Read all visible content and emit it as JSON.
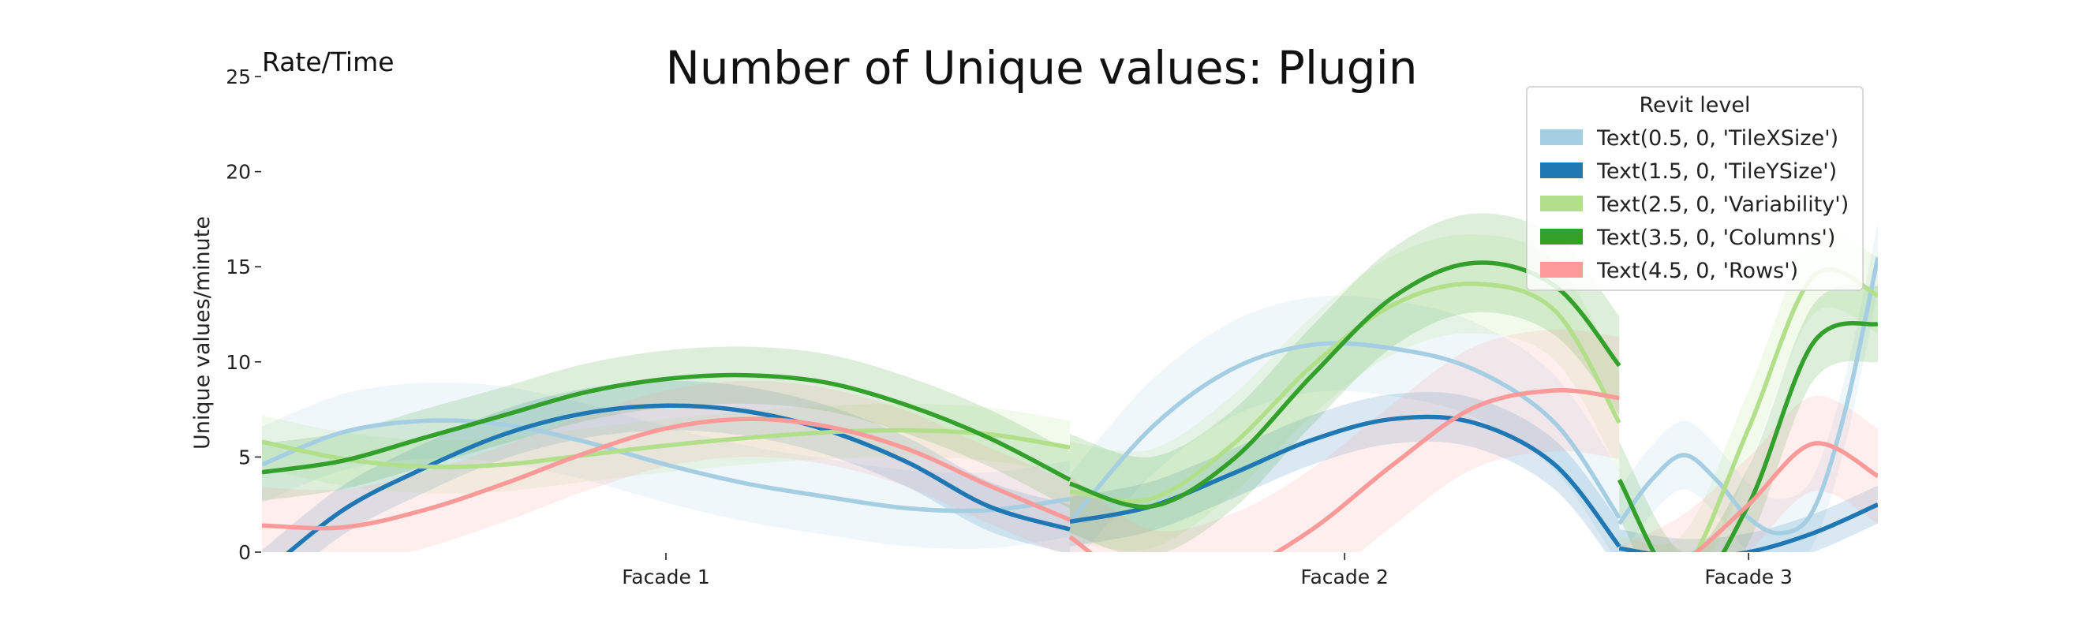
{
  "chart_data": {
    "type": "line",
    "title": "Number of Unique values: Plugin",
    "corner_label": "Rate/Time",
    "ylabel": "Unique values/minute",
    "xlabel": "",
    "ylim": [
      0,
      25
    ],
    "yticks": [
      0,
      5,
      10,
      15,
      20,
      25
    ],
    "categories": [
      "Facade 1",
      "Facade 2",
      "Facade 3"
    ],
    "category_ranges": [
      [
        0,
        1
      ],
      [
        1,
        1.68
      ],
      [
        1.68,
        2
      ]
    ],
    "legend": {
      "title": "Revit level",
      "position": "top-right"
    },
    "series": [
      {
        "name": "Text(0.5, 0, 'TileXSize')",
        "color": "#a6cee3",
        "segments": [
          {
            "x": [
              0,
              0.1,
              0.2,
              0.3,
              0.4,
              0.5,
              0.6,
              0.7,
              0.8,
              0.9,
              1.0
            ],
            "y": [
              4.6,
              6.3,
              6.9,
              6.7,
              5.8,
              4.6,
              3.6,
              2.9,
              2.3,
              2.2,
              2.8
            ],
            "band": 2.0
          },
          {
            "x": [
              1.0,
              1.1,
              1.2,
              1.3,
              1.4,
              1.5,
              1.6,
              1.68
            ],
            "y": [
              1.6,
              6.5,
              9.6,
              10.9,
              10.7,
              9.6,
              6.8,
              1.8
            ],
            "band": 2.5
          },
          {
            "x": [
              1.68,
              1.72,
              1.76,
              1.8,
              1.84,
              1.88,
              1.92,
              1.96,
              2.0
            ],
            "y": [
              1.5,
              3.8,
              5.1,
              3.8,
              1.8,
              1.0,
              2.2,
              7.5,
              15.5
            ],
            "band": 1.8
          }
        ]
      },
      {
        "name": "Text(1.5, 0, 'TileYSize')",
        "color": "#1f78b4",
        "segments": [
          {
            "x": [
              0,
              0.1,
              0.2,
              0.3,
              0.4,
              0.5,
              0.6,
              0.7,
              0.8,
              0.9,
              1.0
            ],
            "y": [
              -1.2,
              2.2,
              4.4,
              6.2,
              7.3,
              7.7,
              7.4,
              6.4,
              4.7,
              2.4,
              1.2
            ],
            "band": 1.3
          },
          {
            "x": [
              1.0,
              1.1,
              1.2,
              1.3,
              1.4,
              1.5,
              1.6,
              1.68
            ],
            "y": [
              1.6,
              2.4,
              4.1,
              5.9,
              7.0,
              6.8,
              4.6,
              0.3
            ],
            "band": 1.3
          },
          {
            "x": [
              1.68,
              1.76,
              1.84,
              1.92,
              2.0
            ],
            "y": [
              0.2,
              -0.3,
              0.0,
              1.0,
              2.5
            ],
            "band": 1.0
          }
        ]
      },
      {
        "name": "Text(2.5, 0, 'Variability')",
        "color": "#b2df8a",
        "segments": [
          {
            "x": [
              0,
              0.1,
              0.2,
              0.3,
              0.4,
              0.5,
              0.6,
              0.7,
              0.8,
              0.9,
              1.0
            ],
            "y": [
              5.8,
              4.9,
              4.5,
              4.6,
              5.1,
              5.6,
              6.0,
              6.3,
              6.4,
              6.2,
              5.5
            ],
            "band": 1.4
          },
          {
            "x": [
              1.0,
              1.1,
              1.2,
              1.3,
              1.4,
              1.5,
              1.6,
              1.68
            ],
            "y": [
              3.2,
              2.8,
              5.6,
              9.8,
              13.0,
              14.1,
              12.7,
              6.8
            ],
            "band": 2.6
          },
          {
            "x": [
              1.68,
              1.76,
              1.84,
              1.92,
              2.0
            ],
            "y": [
              -1.2,
              -1.0,
              6.5,
              14.5,
              13.5
            ],
            "band": 2.0
          }
        ]
      },
      {
        "name": "Text(3.5, 0, 'Columns')",
        "color": "#33a02c",
        "segments": [
          {
            "x": [
              0,
              0.1,
              0.2,
              0.3,
              0.4,
              0.5,
              0.6,
              0.7,
              0.8,
              0.9,
              1.0
            ],
            "y": [
              4.2,
              4.8,
              6.0,
              7.2,
              8.4,
              9.1,
              9.3,
              8.9,
              7.7,
              6.0,
              3.8
            ],
            "band": 1.5
          },
          {
            "x": [
              1.0,
              1.1,
              1.2,
              1.3,
              1.4,
              1.5,
              1.6,
              1.68
            ],
            "y": [
              3.6,
              2.4,
              4.8,
              9.3,
              13.4,
              15.2,
              14.0,
              9.8
            ],
            "band": 2.6
          },
          {
            "x": [
              1.68,
              1.76,
              1.84,
              1.92,
              2.0
            ],
            "y": [
              3.8,
              -2.0,
              2.5,
              11.0,
              12.0
            ],
            "band": 2.0
          }
        ]
      },
      {
        "name": "Text(4.5, 0, 'Rows')",
        "color": "#fb9a99",
        "segments": [
          {
            "x": [
              0,
              0.1,
              0.2,
              0.3,
              0.4,
              0.5,
              0.6,
              0.7,
              0.8,
              0.9,
              1.0
            ],
            "y": [
              1.4,
              1.3,
              2.2,
              3.6,
              5.2,
              6.5,
              7.0,
              6.6,
              5.4,
              3.5,
              1.7
            ],
            "band": 2.0
          },
          {
            "x": [
              1.0,
              1.1,
              1.2,
              1.3,
              1.4,
              1.5,
              1.6,
              1.68
            ],
            "y": [
              0.8,
              -2.0,
              -1.2,
              1.2,
              4.6,
              7.6,
              8.5,
              8.1
            ],
            "band": 3.2
          },
          {
            "x": [
              1.68,
              1.76,
              1.84,
              1.92,
              2.0
            ],
            "y": [
              -2.2,
              -0.5,
              2.5,
              5.7,
              4.0
            ],
            "band": 2.5
          }
        ]
      }
    ]
  }
}
